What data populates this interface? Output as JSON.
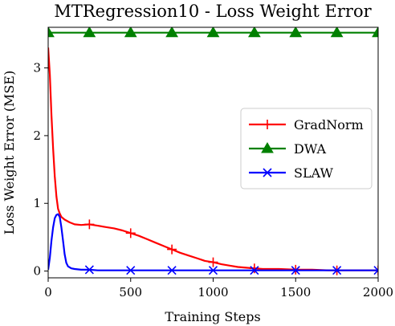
{
  "chart_data": {
    "type": "line",
    "title": "MTRegression10 - Loss Weight Error",
    "xlabel": "Training Steps",
    "ylabel": "Loss Weight Error (MSE)",
    "xlim": [
      0,
      2000
    ],
    "ylim": [
      -0.1,
      3.6
    ],
    "xticks": [
      0,
      500,
      1000,
      1500,
      2000
    ],
    "yticks": [
      0,
      1,
      2,
      3
    ],
    "grid": false,
    "legend_position": "right",
    "series": [
      {
        "name": "GradNorm",
        "color": "#ff0000",
        "marker": "plus",
        "x": [
          0,
          10,
          20,
          30,
          40,
          50,
          60,
          70,
          80,
          100,
          130,
          160,
          200,
          250,
          300,
          350,
          400,
          450,
          500,
          550,
          600,
          650,
          700,
          750,
          800,
          850,
          900,
          950,
          1000,
          1050,
          1100,
          1150,
          1200,
          1250,
          1300,
          1400,
          1500,
          1600,
          1700,
          1800,
          1900,
          2000
        ],
        "y": [
          3.3,
          2.9,
          2.3,
          1.8,
          1.4,
          1.1,
          0.92,
          0.85,
          0.8,
          0.76,
          0.72,
          0.69,
          0.68,
          0.69,
          0.67,
          0.65,
          0.63,
          0.6,
          0.56,
          0.52,
          0.47,
          0.42,
          0.37,
          0.32,
          0.27,
          0.23,
          0.19,
          0.15,
          0.13,
          0.1,
          0.08,
          0.06,
          0.05,
          0.04,
          0.03,
          0.03,
          0.02,
          0.02,
          0.01,
          0.01,
          0.01,
          0.01
        ],
        "marker_x": [
          250,
          500,
          750,
          1000,
          1250,
          1500,
          1750,
          2000
        ]
      },
      {
        "name": "DWA",
        "color": "#008000",
        "marker": "triangle",
        "x": [
          0,
          2000
        ],
        "y": [
          3.52,
          3.52
        ],
        "marker_x": [
          0,
          250,
          500,
          750,
          1000,
          1250,
          1500,
          1750,
          2000
        ]
      },
      {
        "name": "SLAW",
        "color": "#0000ff",
        "marker": "x",
        "x": [
          0,
          10,
          20,
          30,
          40,
          50,
          60,
          70,
          80,
          90,
          100,
          110,
          120,
          140,
          160,
          200,
          250,
          300,
          400,
          500,
          1000,
          1500,
          2000
        ],
        "y": [
          0.02,
          0.2,
          0.45,
          0.65,
          0.78,
          0.83,
          0.84,
          0.8,
          0.65,
          0.45,
          0.25,
          0.12,
          0.07,
          0.04,
          0.03,
          0.02,
          0.02,
          0.01,
          0.01,
          0.01,
          0.01,
          0.01,
          0.01
        ],
        "marker_x": [
          250,
          500,
          750,
          1000,
          1250,
          1500,
          1750,
          2000
        ]
      }
    ]
  }
}
